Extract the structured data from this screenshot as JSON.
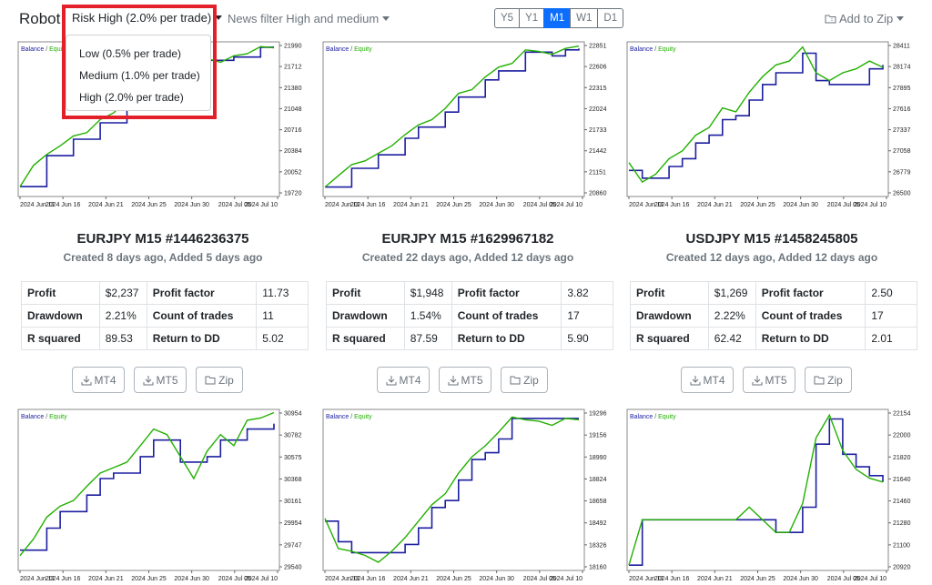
{
  "header": {
    "brand": "Robot",
    "risk_toggle": "Risk High (2.0% per trade)",
    "news_toggle": "News filter High and medium",
    "add_to_zip": "Add to Zip",
    "periods": [
      "Y5",
      "Y1",
      "M1",
      "W1",
      "D1"
    ],
    "active_period": "M1"
  },
  "risk_menu": {
    "items": [
      "Low (0.5% per trade)",
      "Medium (1.0% per trade)",
      "High (2.0% per trade)"
    ]
  },
  "chart_legend": {
    "balance": "Balance",
    "sep": " / ",
    "equity": "Equity"
  },
  "colors": {
    "balance": "#1c1fa0",
    "equity": "#22b000",
    "accent": "#0d6efd",
    "highlight": "#e3202a"
  },
  "x_ticks": [
    "2024 Jun 11",
    "2024 Jun 16",
    "2024 Jun 21",
    "2024 Jun 25",
    "2024 Jun 30",
    "2024 Jul 05",
    "2024 Jul 10"
  ],
  "stat_labels": {
    "profit": "Profit",
    "profit_factor": "Profit factor",
    "drawdown": "Drawdown",
    "count": "Count of trades",
    "r2": "R squared",
    "rdd": "Return to DD"
  },
  "buttons": {
    "mt4": "MT4",
    "mt5": "MT5",
    "zip": "Zip"
  },
  "robots": [
    {
      "title": "EURJPY M15 #1446236375",
      "created": "Created 8 days ago, Added 5 days ago",
      "profit": "$2,237",
      "profit_factor": "11.73",
      "drawdown": "2.21%",
      "count": "11",
      "r2": "89.53",
      "rdd": "5.02"
    },
    {
      "title": "EURJPY M15 #1629967182",
      "created": "Created 22 days ago, Added 12 days ago",
      "profit": "$1,948",
      "profit_factor": "3.82",
      "drawdown": "1.54%",
      "count": "17",
      "r2": "87.59",
      "rdd": "5.90"
    },
    {
      "title": "USDJPY M15 #1458245805",
      "created": "Created 12 days ago, Added 12 days ago",
      "profit": "$1,269",
      "profit_factor": "2.50",
      "drawdown": "2.22%",
      "count": "17",
      "r2": "62.42",
      "rdd": "2.01"
    }
  ],
  "chart_data": [
    {
      "type": "line",
      "title": "",
      "ylim": [
        19720,
        21990
      ],
      "y_ticks": [
        "21990",
        "21712",
        "21380",
        "21048",
        "20716",
        "20384",
        "20052",
        "19720"
      ],
      "series": [
        {
          "name": "Balance",
          "values": [
            19830,
            19830,
            20300,
            20300,
            20550,
            20550,
            20800,
            20800,
            21100,
            21100,
            21400,
            21400,
            21600,
            21600,
            21750,
            21750,
            21800,
            21800,
            21950,
            21950
          ]
        },
        {
          "name": "Equity",
          "values": [
            19830,
            20150,
            20320,
            20450,
            20600,
            20650,
            20850,
            20950,
            21150,
            21250,
            21450,
            21500,
            21650,
            21680,
            21780,
            21720,
            21820,
            21850,
            21960,
            21940
          ]
        }
      ]
    },
    {
      "type": "line",
      "title": "",
      "ylim": [
        20860,
        22851
      ],
      "y_ticks": [
        "22851",
        "22606",
        "22315",
        "22024",
        "21733",
        "21442",
        "21151",
        "20860"
      ],
      "series": [
        {
          "name": "Balance",
          "values": [
            20950,
            20950,
            21200,
            21200,
            21380,
            21380,
            21600,
            21750,
            21750,
            21950,
            22150,
            22150,
            22380,
            22500,
            22500,
            22750,
            22750,
            22700,
            22780,
            22800
          ]
        },
        {
          "name": "Equity",
          "values": [
            20950,
            21100,
            21250,
            21300,
            21400,
            21500,
            21650,
            21780,
            21850,
            22000,
            22200,
            22250,
            22420,
            22550,
            22600,
            22780,
            22760,
            22720,
            22800,
            22830
          ]
        }
      ]
    },
    {
      "type": "line",
      "title": "",
      "ylim": [
        26500,
        28411
      ],
      "y_ticks": [
        "28411",
        "28174",
        "27895",
        "27616",
        "27337",
        "27058",
        "26779",
        "26500"
      ],
      "series": [
        {
          "name": "Balance",
          "values": [
            26800,
            26700,
            26700,
            26850,
            26950,
            27150,
            27250,
            27450,
            27500,
            27700,
            27900,
            28050,
            28050,
            28300,
            27950,
            27900,
            27900,
            27900,
            28100,
            28150
          ]
        },
        {
          "name": "Equity",
          "values": [
            26900,
            26650,
            26750,
            26950,
            27050,
            27250,
            27350,
            27600,
            27550,
            27800,
            28000,
            28150,
            28200,
            28380,
            28050,
            27950,
            28050,
            28100,
            28200,
            28120
          ]
        }
      ]
    },
    {
      "type": "line",
      "title": "",
      "ylim": [
        29540,
        30954
      ],
      "y_ticks": [
        "30954",
        "30782",
        "30575",
        "30368",
        "30161",
        "29954",
        "29747",
        "29540"
      ],
      "series": [
        {
          "name": "Balance",
          "values": [
            29700,
            29700,
            29900,
            30050,
            30050,
            30200,
            30350,
            30400,
            30400,
            30550,
            30700,
            30700,
            30500,
            30500,
            30550,
            30700,
            30700,
            30800,
            30800,
            30850
          ]
        },
        {
          "name": "Equity",
          "values": [
            29650,
            29800,
            30000,
            30100,
            30150,
            30280,
            30400,
            30450,
            30500,
            30650,
            30800,
            30750,
            30550,
            30350,
            30600,
            30750,
            30650,
            30880,
            30900,
            30950
          ]
        }
      ]
    },
    {
      "type": "line",
      "title": "",
      "ylim": [
        18160,
        19296
      ],
      "y_ticks": [
        "19296",
        "19156",
        "18990",
        "18824",
        "18658",
        "18492",
        "18326",
        "18160"
      ],
      "series": [
        {
          "name": "Balance",
          "values": [
            18500,
            18350,
            18270,
            18270,
            18270,
            18270,
            18330,
            18450,
            18600,
            18650,
            18800,
            18950,
            19000,
            19100,
            19250,
            19250,
            19250,
            19250,
            19250,
            19250
          ]
        },
        {
          "name": "Equity",
          "values": [
            18520,
            18300,
            18280,
            18250,
            18200,
            18280,
            18380,
            18500,
            18620,
            18700,
            18850,
            18970,
            19050,
            19150,
            19260,
            19240,
            19230,
            19200,
            19250,
            19240
          ]
        }
      ]
    },
    {
      "type": "line",
      "title": "",
      "ylim": [
        20920,
        22154
      ],
      "y_ticks": [
        "22154",
        "22000",
        "21820",
        "21640",
        "21460",
        "21280",
        "21100",
        "20920"
      ],
      "series": [
        {
          "name": "Balance",
          "values": [
            20940,
            21300,
            21300,
            21300,
            21300,
            21300,
            21300,
            21300,
            21300,
            21300,
            21300,
            21200,
            21200,
            21400,
            21900,
            22100,
            21820,
            21720,
            21650,
            21600
          ]
        },
        {
          "name": "Equity",
          "values": [
            20940,
            21300,
            21300,
            21300,
            21300,
            21300,
            21300,
            21300,
            21300,
            21400,
            21300,
            21200,
            21200,
            21430,
            21950,
            22130,
            21850,
            21700,
            21630,
            21600
          ]
        }
      ]
    }
  ]
}
